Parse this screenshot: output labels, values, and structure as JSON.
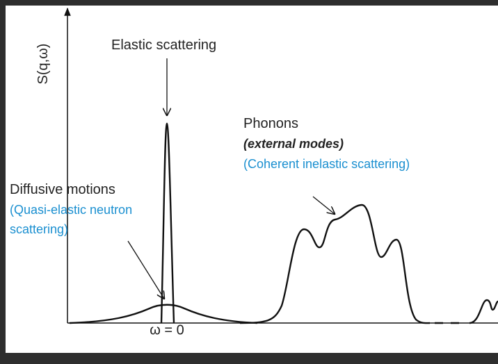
{
  "y_axis_label": "S(q,ω)",
  "x_axis_label": "ω = 0",
  "elastic": {
    "label": "Elastic scattering"
  },
  "phonons": {
    "title": "Phonons",
    "subtitle": "(external modes)",
    "note": "(Coherent inelastic scattering)"
  },
  "diffusive": {
    "title": "Diffusive motions",
    "note_line1": "(Quasi-elastic neutron",
    "note_line2": "scattering)"
  }
}
